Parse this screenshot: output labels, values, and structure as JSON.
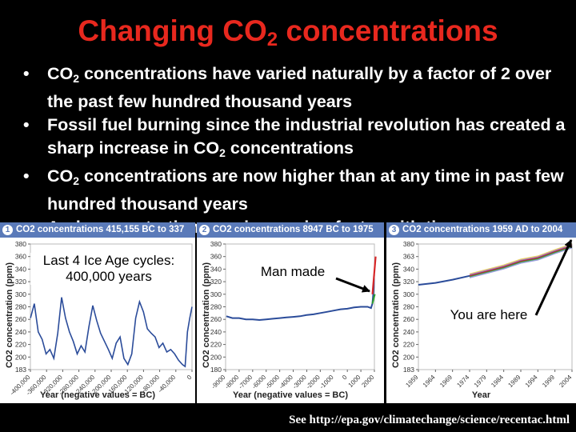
{
  "slide": {
    "title_pre": "Changing CO",
    "title_sub": "2",
    "title_post": " concentrations",
    "footer": "See http://epa.gov/climatechange/science/recentac.html"
  },
  "bullets": [
    {
      "pre": "CO",
      "sub": "2",
      "post": " concentrations have varied naturally by a factor of 2 over the past few hundred thousand years"
    },
    {
      "pre": "Fossil fuel burning since the industrial revolution has created a sharp increase in CO",
      "sub": "2",
      "post": " concentrations"
    },
    {
      "pre": "CO",
      "sub": "2",
      "post": " concentrations are now higher than at any time in past few hundred thousand years"
    },
    {
      "pre": "And concentrations are increasing faster with time",
      "sub": "",
      "post": ""
    }
  ],
  "colors": {
    "title": "#e8281e",
    "header": "#5a7ab9",
    "series": "#2b4c9a",
    "arrow": "#000000"
  },
  "annotations": {
    "ice_age": "Last 4 Ice Age cycles: 400,000 years",
    "man_made": "Man made",
    "here": "You are here"
  },
  "chart_data": [
    {
      "type": "line",
      "num": "1",
      "title": "CO2 concentrations 415,155 BC to 337 BC",
      "xlabel": "Year (negative values = BC)",
      "ylabel": "CO2 concentration (ppm)",
      "ylim": [
        180,
        380
      ],
      "xlim": [
        -415155,
        -337
      ],
      "yticks": [
        "380",
        "360",
        "340",
        "320",
        "300",
        "280",
        "260",
        "240",
        "220",
        "200",
        "183"
      ],
      "xticks": [
        "-400,000",
        "-360,000",
        "-320,000",
        "-280,000",
        "-240,000",
        "-200,000",
        "-160,000",
        "-120,000",
        "-80,000",
        "-40,000",
        "0"
      ],
      "x": [
        -415000,
        -405000,
        -395000,
        -385000,
        -375000,
        -365000,
        -355000,
        -345000,
        -335000,
        -325000,
        -315000,
        -305000,
        -295000,
        -285000,
        -275000,
        -265000,
        -255000,
        -245000,
        -235000,
        -225000,
        -215000,
        -205000,
        -195000,
        -185000,
        -175000,
        -165000,
        -155000,
        -145000,
        -135000,
        -125000,
        -115000,
        -105000,
        -95000,
        -85000,
        -75000,
        -65000,
        -55000,
        -45000,
        -35000,
        -25000,
        -18000,
        -12000,
        -6000,
        -337
      ],
      "values": [
        262,
        285,
        240,
        228,
        205,
        212,
        198,
        238,
        295,
        262,
        240,
        225,
        205,
        218,
        208,
        248,
        282,
        258,
        238,
        225,
        212,
        198,
        222,
        232,
        198,
        188,
        205,
        262,
        288,
        272,
        245,
        238,
        232,
        215,
        222,
        208,
        212,
        205,
        195,
        188,
        185,
        240,
        262,
        280
      ]
    },
    {
      "type": "line",
      "num": "2",
      "title": "CO2 concentrations 8947 BC to 1975 AD",
      "xlabel": "Year (negative values = BC)",
      "ylabel": "CO2 concentration (ppm)",
      "ylim": [
        180,
        380
      ],
      "xlim": [
        -9000,
        2000
      ],
      "yticks": [
        "380",
        "360",
        "340",
        "320",
        "300",
        "280",
        "260",
        "240",
        "220",
        "200",
        "180"
      ],
      "xticks": [
        "-9000",
        "-8000",
        "-7000",
        "-6000",
        "-5000",
        "-4000",
        "-3000",
        "-2000",
        "-1000",
        "0",
        "1000",
        "2000"
      ],
      "x": [
        -8947,
        -8500,
        -8000,
        -7500,
        -7000,
        -6500,
        -6000,
        -5500,
        -5000,
        -4500,
        -4000,
        -3500,
        -3000,
        -2500,
        -2000,
        -1500,
        -1000,
        -500,
        0,
        500,
        1000,
        1500,
        1750,
        1850,
        1900,
        1950,
        1975
      ],
      "values": [
        265,
        262,
        262,
        260,
        260,
        259,
        260,
        261,
        262,
        263,
        264,
        265,
        267,
        268,
        270,
        272,
        274,
        276,
        277,
        279,
        280,
        280,
        278,
        285,
        296,
        311,
        331
      ]
    },
    {
      "type": "line",
      "num": "3",
      "title": "CO2 concentrations 1959 AD to 2004 AD",
      "xlabel": "Year",
      "ylabel": "CO2 concentration (ppm)",
      "ylim": [
        183,
        380
      ],
      "xlim": [
        1959,
        2004
      ],
      "yticks": [
        "380",
        "363",
        "340",
        "320",
        "300",
        "280",
        "260",
        "240",
        "220",
        "200",
        "183"
      ],
      "xticks": [
        "1959",
        "1964",
        "1969",
        "1974",
        "1979",
        "1984",
        "1989",
        "1994",
        "1999",
        "2004"
      ],
      "x": [
        1959,
        1964,
        1969,
        1974,
        1979,
        1984,
        1989,
        1994,
        1999,
        2004
      ],
      "values": [
        316,
        319,
        324,
        330,
        337,
        344,
        353,
        358,
        368,
        377
      ]
    }
  ]
}
